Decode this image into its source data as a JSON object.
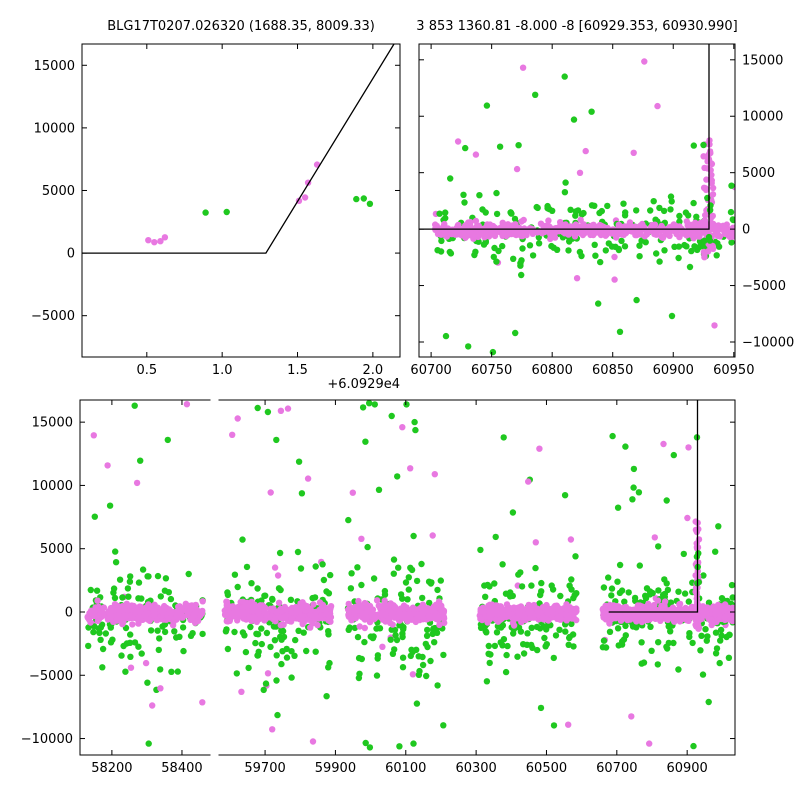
{
  "titles": {
    "left": "BLG17T0207.026320 (1688.35, 8009.33)",
    "right": "3 853 1360.81 -8.000 -8 [60929.353, 60930.990]"
  },
  "colors": {
    "green": "#1FC81F",
    "violet": "#E878E1",
    "model": "#000000",
    "axis": "#000000",
    "background": "#FFFFFF",
    "text": "#000000"
  },
  "chart_data": [
    {
      "name": "panel-event-zoom",
      "type": "scatter",
      "px": {
        "l": 82,
        "r": 400,
        "t": 44,
        "b": 357
      },
      "xlim": [
        0.07,
        2.18
      ],
      "ylim": [
        -8300,
        16700
      ],
      "x_offset_text": "+6.0929e4",
      "xticks": [
        0.5,
        1.0,
        1.5,
        2.0
      ],
      "xtick_labels": [
        "0.5",
        "1.0",
        "1.5",
        "2.0"
      ],
      "yticks": [
        -5000,
        0,
        5000,
        10000,
        15000
      ],
      "ytick_labels": [
        "−5000",
        "0",
        "5000",
        "10000",
        "15000"
      ],
      "spines": [
        "left",
        "right",
        "top",
        "bottom"
      ],
      "label_sides": [
        "left",
        "bottom"
      ],
      "model_line": [
        [
          0.07,
          0
        ],
        [
          1.29,
          0
        ],
        [
          2.14,
          16700
        ]
      ],
      "points": [
        {
          "x": 0.51,
          "y": 1030,
          "c": "violet"
        },
        {
          "x": 0.55,
          "y": 870,
          "c": "violet"
        },
        {
          "x": 0.59,
          "y": 950,
          "c": "violet"
        },
        {
          "x": 0.62,
          "y": 1260,
          "c": "violet"
        },
        {
          "x": 0.89,
          "y": 3230,
          "c": "green"
        },
        {
          "x": 1.03,
          "y": 3280,
          "c": "green"
        },
        {
          "x": 1.51,
          "y": 4180,
          "c": "violet"
        },
        {
          "x": 1.55,
          "y": 4440,
          "c": "violet"
        },
        {
          "x": 1.57,
          "y": 5620,
          "c": "violet"
        },
        {
          "x": 1.63,
          "y": 7070,
          "c": "violet"
        },
        {
          "x": 1.89,
          "y": 4310,
          "c": "green"
        },
        {
          "x": 1.94,
          "y": 4360,
          "c": "green"
        },
        {
          "x": 1.98,
          "y": 3940,
          "c": "green"
        }
      ]
    },
    {
      "name": "panel-current-season",
      "type": "scatter",
      "px": {
        "l": 419,
        "r": 735,
        "t": 44,
        "b": 357
      },
      "xlim": [
        60690,
        60951
      ],
      "ylim": [
        -11330,
        16400
      ],
      "xticks": [
        60700,
        60750,
        60800,
        60850,
        60900,
        60950
      ],
      "xtick_labels": [
        "60700",
        "60750",
        "60800",
        "60850",
        "60900",
        "60950"
      ],
      "yticks": [
        -10000,
        -5000,
        0,
        5000,
        10000,
        15000
      ],
      "ytick_labels": [
        "−10000",
        "−5000",
        "0",
        "5000",
        "10000",
        "15000"
      ],
      "spines": [
        "left",
        "right",
        "top",
        "bottom"
      ],
      "label_sides": [
        "right",
        "bottom"
      ],
      "model_line": [
        [
          60690,
          0
        ],
        [
          60929.5,
          0
        ],
        [
          60929.5,
          16400
        ]
      ],
      "generated": [
        {
          "x": [
            60703,
            60952
          ],
          "outliers": {
            "n": 32,
            "y": [
              -10800,
              15000
            ],
            "green_frac": 0.58
          },
          "series": [
            {
              "color": "green",
              "n": 185,
              "mean": -250,
              "sigma": 1500
            },
            {
              "color": "violet",
              "n": 520,
              "mean": -80,
              "sigma": 300
            }
          ]
        },
        {
          "x": [
            60925,
            60933
          ],
          "uniform": [
            {
              "color": "violet",
              "n": 60,
              "y": [
                -2800,
                7900
              ]
            },
            {
              "color": "green",
              "n": 6,
              "y": [
                -1500,
                7400
              ]
            }
          ]
        }
      ],
      "points": [
        {
          "x": 60776,
          "y": 14300,
          "c": "violet"
        },
        {
          "x": 60786,
          "y": 11900,
          "c": "green"
        },
        {
          "x": 60818,
          "y": 9700,
          "c": "green"
        },
        {
          "x": 60887,
          "y": 10900,
          "c": "violet"
        },
        {
          "x": 60737,
          "y": 6600,
          "c": "violet"
        },
        {
          "x": 60757,
          "y": 7300,
          "c": "green"
        },
        {
          "x": 60751,
          "y": -10900,
          "c": "green"
        },
        {
          "x": 60838,
          "y": -6600,
          "c": "green"
        },
        {
          "x": 60856,
          "y": -9100,
          "c": "green"
        },
        {
          "x": 60899,
          "y": -7700,
          "c": "green"
        },
        {
          "x": 60917,
          "y": 7400,
          "c": "green"
        },
        {
          "x": 60925,
          "y": 7450,
          "c": "green"
        }
      ]
    },
    {
      "name": "panel-history-left",
      "type": "scatter",
      "px": {
        "l": 80,
        "r": 210,
        "t": 400,
        "b": 755
      },
      "xlim": [
        58109,
        58480
      ],
      "ylim": [
        -11300,
        16750
      ],
      "xticks": [
        58200,
        58400
      ],
      "xtick_labels": [
        "58200",
        "58400"
      ],
      "yticks": [
        -10000,
        -5000,
        0,
        5000,
        10000,
        15000
      ],
      "ytick_labels": [
        "−10000",
        "−5000",
        "0",
        "5000",
        "10000",
        "15000"
      ],
      "spines": [
        "left",
        "top",
        "bottom"
      ],
      "label_sides": [
        "left",
        "bottom"
      ],
      "generated": [
        {
          "x": [
            58130,
            58460
          ],
          "outliers": {
            "n": 20,
            "y": [
              -10600,
              16500
            ],
            "green_frac": 0.6
          },
          "series": [
            {
              "color": "green",
              "n": 115,
              "mean": -500,
              "sigma": 1900
            },
            {
              "color": "violet",
              "n": 310,
              "mean": -120,
              "sigma": 330
            }
          ]
        }
      ],
      "points": [
        {
          "x": 58265,
          "y": 16300,
          "c": "green"
        },
        {
          "x": 58272,
          "y": 10200,
          "c": "violet"
        },
        {
          "x": 58305,
          "y": -10400,
          "c": "green"
        },
        {
          "x": 58195,
          "y": 8400,
          "c": "green"
        }
      ]
    },
    {
      "name": "panel-history-right",
      "type": "scatter",
      "px": {
        "l": 219,
        "r": 735,
        "t": 400,
        "b": 755
      },
      "xlim": [
        59569,
        61036
      ],
      "ylim": [
        -11300,
        16750
      ],
      "xticks": [
        59700,
        59900,
        60100,
        60300,
        60500,
        60700,
        60900
      ],
      "xtick_labels": [
        "59700",
        "59900",
        "60100",
        "60300",
        "60500",
        "60700",
        "60900"
      ],
      "yticks": [
        -10000,
        -5000,
        0,
        5000,
        10000,
        15000
      ],
      "ytick_labels": [
        "−10000",
        "−5000",
        "0",
        "5000",
        "10000",
        "15000"
      ],
      "spines": [
        "right",
        "top",
        "bottom"
      ],
      "label_sides": [
        "bottom"
      ],
      "model_line": [
        [
          60677,
          0
        ],
        [
          60929.5,
          0
        ],
        [
          60929.5,
          16750
        ]
      ],
      "generated": [
        {
          "x": [
            59585,
            59888
          ],
          "outliers": {
            "n": 26,
            "y": [
              -10800,
              16600
            ],
            "green_frac": 0.55
          },
          "series": [
            {
              "color": "green",
              "n": 125,
              "mean": -600,
              "sigma": 2000
            },
            {
              "color": "violet",
              "n": 330,
              "mean": -110,
              "sigma": 330
            }
          ]
        },
        {
          "x": [
            59935,
            60210
          ],
          "outliers": {
            "n": 28,
            "y": [
              -10900,
              16600
            ],
            "green_frac": 0.6
          },
          "series": [
            {
              "color": "green",
              "n": 120,
              "mean": -500,
              "sigma": 2100
            },
            {
              "color": "violet",
              "n": 320,
              "mean": -110,
              "sigma": 340
            }
          ]
        },
        {
          "x": [
            60310,
            60585
          ],
          "outliers": {
            "n": 20,
            "y": [
              -9800,
              14500
            ],
            "green_frac": 0.6
          },
          "series": [
            {
              "color": "green",
              "n": 110,
              "mean": -400,
              "sigma": 1800
            },
            {
              "color": "violet",
              "n": 320,
              "mean": -110,
              "sigma": 320
            }
          ]
        },
        {
          "x": [
            60660,
            61030
          ],
          "outliers": {
            "n": 24,
            "y": [
              -10800,
              14200
            ],
            "green_frac": 0.6
          },
          "series": [
            {
              "color": "green",
              "n": 150,
              "mean": -300,
              "sigma": 1700
            },
            {
              "color": "violet",
              "n": 470,
              "mean": -90,
              "sigma": 330
            }
          ]
        },
        {
          "x": [
            60924,
            60934
          ],
          "uniform": [
            {
              "color": "violet",
              "n": 42,
              "y": [
                -1600,
                7800
              ]
            },
            {
              "color": "green",
              "n": 5,
              "y": [
                0,
                5600
              ]
            }
          ]
        }
      ],
      "points": [
        {
          "x": 59708,
          "y": 15800,
          "c": "green"
        },
        {
          "x": 59745,
          "y": 15900,
          "c": "violet"
        },
        {
          "x": 59732,
          "y": 13600,
          "c": "green"
        },
        {
          "x": 59996,
          "y": 16500,
          "c": "green"
        },
        {
          "x": 60012,
          "y": 16400,
          "c": "green"
        },
        {
          "x": 60090,
          "y": 14600,
          "c": "violet"
        },
        {
          "x": 60102,
          "y": 16400,
          "c": "green"
        },
        {
          "x": 60125,
          "y": 15000,
          "c": "green"
        },
        {
          "x": 59998,
          "y": -10700,
          "c": "green"
        },
        {
          "x": 60122,
          "y": -10400,
          "c": "green"
        },
        {
          "x": 60480,
          "y": 12900,
          "c": "violet"
        },
        {
          "x": 60448,
          "y": 10300,
          "c": "violet"
        },
        {
          "x": 60688,
          "y": 13900,
          "c": "green"
        },
        {
          "x": 60862,
          "y": 12400,
          "c": "green"
        },
        {
          "x": 60928,
          "y": 13800,
          "c": "green"
        },
        {
          "x": 60918,
          "y": -10600,
          "c": "green"
        },
        {
          "x": 60792,
          "y": -10400,
          "c": "violet"
        }
      ]
    }
  ]
}
